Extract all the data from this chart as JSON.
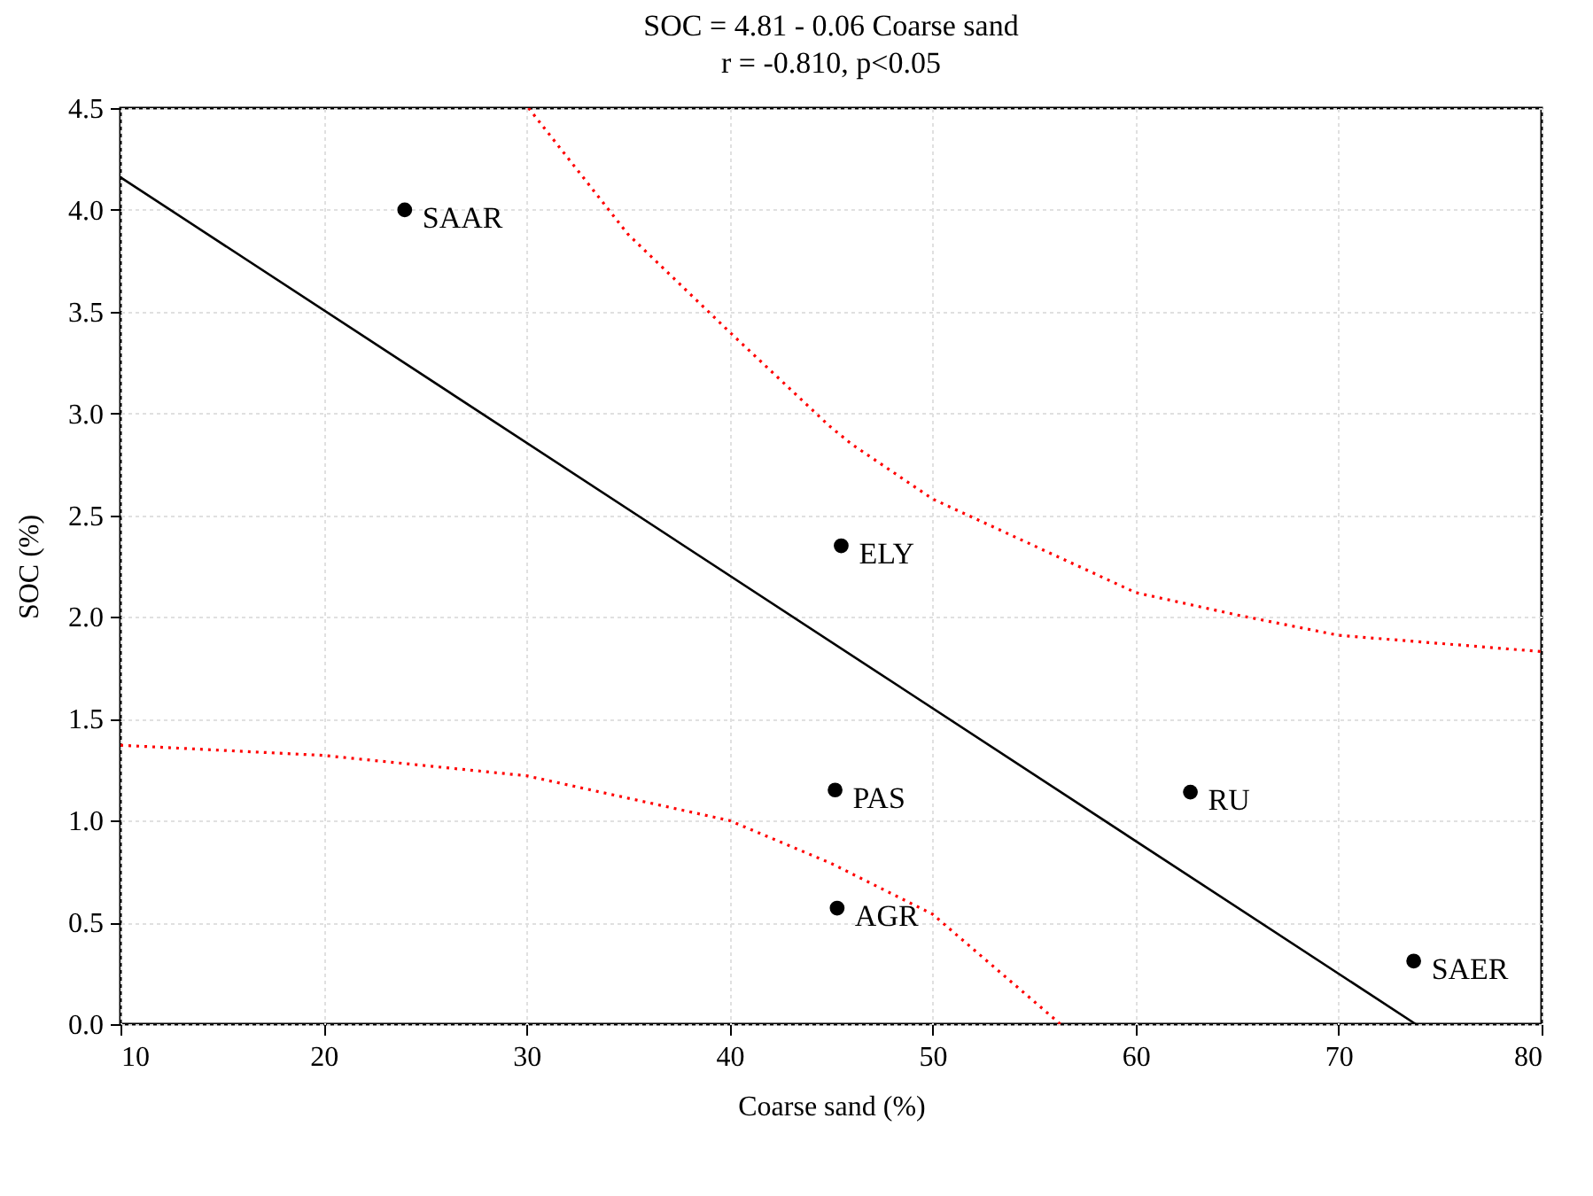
{
  "chart_data": {
    "type": "scatter",
    "title": "SOC = 4.81 - 0.06 Coarse sand",
    "subtitle": "r = -0.810, p<0.05",
    "xlabel": "Coarse sand (%)",
    "ylabel": "SOC (%)",
    "xlim": [
      10,
      80
    ],
    "xticks": [
      10,
      20,
      30,
      40,
      50,
      60,
      70,
      80
    ],
    "ylim": [
      0,
      4.5
    ],
    "yticks": [
      {
        "value": 0,
        "label": "0.0"
      },
      {
        "value": 0.5,
        "label": "0.5"
      },
      {
        "value": 1,
        "label": "1.0"
      },
      {
        "value": 1.5,
        "label": "1.5"
      },
      {
        "value": 2,
        "label": "2.0"
      },
      {
        "value": 2.5,
        "label": "2.5"
      },
      {
        "value": 3,
        "label": "3.0"
      },
      {
        "value": 3.5,
        "label": "3.5"
      },
      {
        "value": 4,
        "label": "4.0"
      },
      {
        "value": 4.5,
        "label": "4.5"
      }
    ],
    "grid": true,
    "series": [
      {
        "marker": "circle",
        "color": "#000000",
        "x": [
          24.0,
          45.5,
          45.2,
          45.3,
          62.7,
          73.7
        ],
        "values": [
          4.0,
          2.35,
          1.15,
          0.57,
          1.14,
          0.31
        ]
      },
      {
        "type": "line",
        "color": "#000000",
        "line_style": "solid",
        "x": [
          10,
          73.8
        ],
        "values": [
          4.16,
          0
        ]
      },
      {
        "type": "line",
        "color": "#ff0000",
        "line_style": "dotted",
        "x": [
          30.1,
          35,
          40,
          44.9,
          46,
          50,
          60,
          65,
          70,
          80
        ],
        "values": [
          4.5,
          3.88,
          3.4,
          2.94,
          2.85,
          2.58,
          2.12,
          2.01,
          1.91,
          1.83
        ]
      },
      {
        "type": "line",
        "color": "#ff0000",
        "line_style": "dotted",
        "x": [
          10,
          20,
          30,
          40,
          45,
          50,
          56.3
        ],
        "values": [
          1.37,
          1.32,
          1.22,
          1.0,
          0.79,
          0.54,
          0
        ]
      }
    ],
    "annotations": [
      {
        "text": "SAAR",
        "x": 24.0,
        "y": 4.0
      },
      {
        "text": "ELY",
        "x": 45.5,
        "y": 2.35
      },
      {
        "text": "PAS",
        "x": 45.2,
        "y": 1.15
      },
      {
        "text": "AGR",
        "x": 45.3,
        "y": 0.57
      },
      {
        "text": "RU",
        "x": 62.7,
        "y": 1.14
      },
      {
        "text": "SAER",
        "x": 73.7,
        "y": 0.31
      }
    ]
  }
}
